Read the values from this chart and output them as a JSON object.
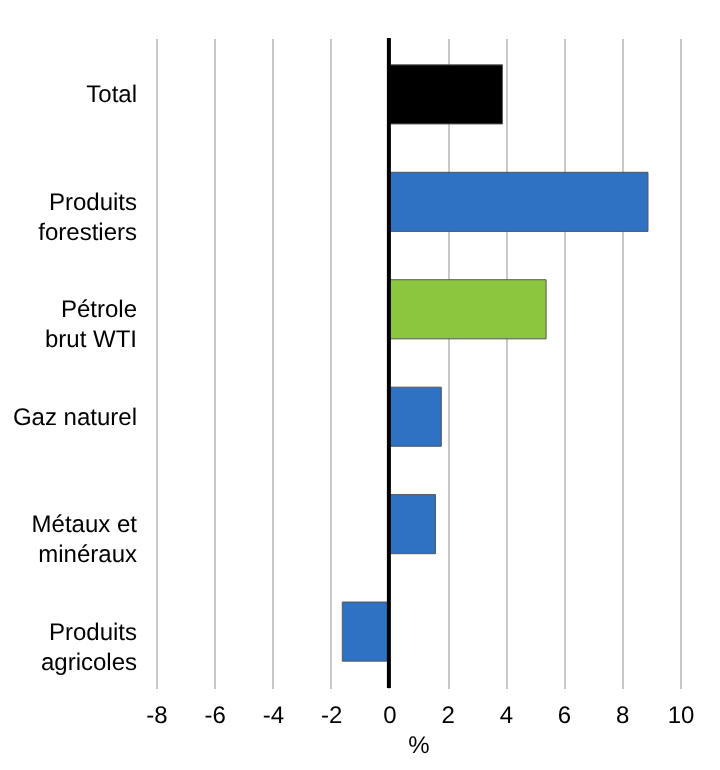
{
  "chart_data": {
    "type": "bar",
    "orientation": "horizontal",
    "xlabel": "%",
    "categories": [
      "Total",
      "Produits\nforestiers",
      "Pétrole\nbrut WTI",
      "Gaz naturel",
      "Métaux et\nminéraux",
      "Produits\nagricoles"
    ],
    "values": [
      3.9,
      8.9,
      5.4,
      1.8,
      1.6,
      -1.6
    ],
    "colors": [
      "#000000",
      "#2f72c4",
      "#8cc63f",
      "#2f72c4",
      "#2f72c4",
      "#2f72c4"
    ],
    "xlim": [
      -8,
      10
    ],
    "xticks": [
      -8,
      -6,
      -4,
      -2,
      0,
      2,
      4,
      6,
      8,
      10
    ],
    "grid": "x",
    "legend": false,
    "ref_lines": [
      {
        "axis": "x",
        "value": 0,
        "color": "#000000"
      }
    ]
  }
}
